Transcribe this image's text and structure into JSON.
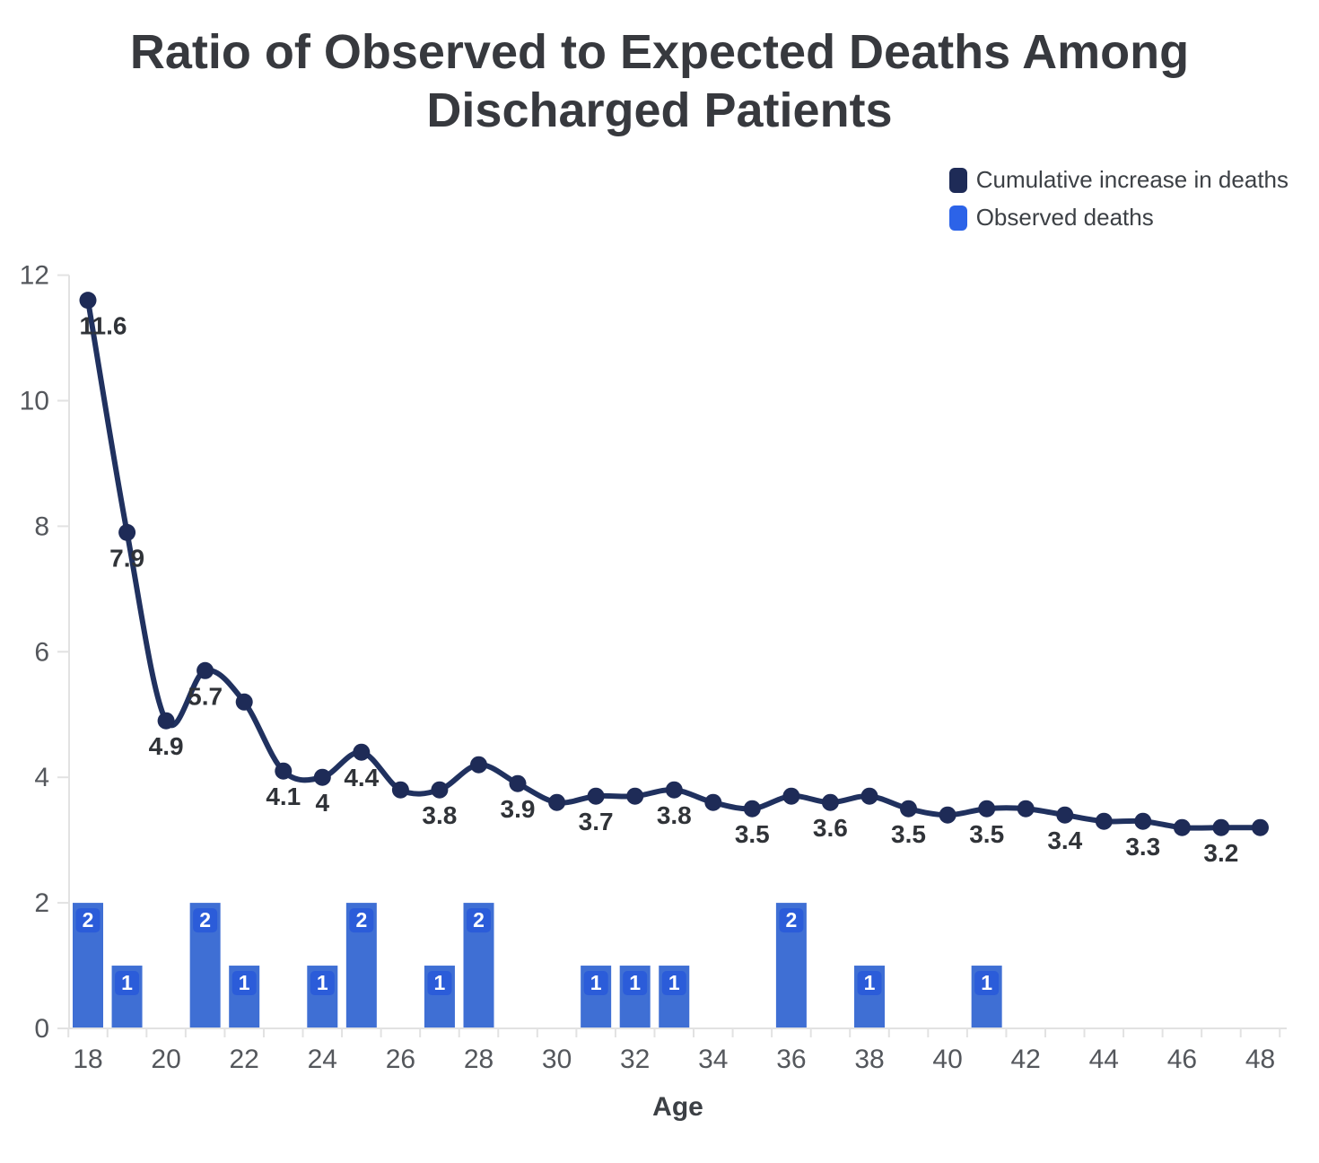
{
  "title": "Ratio of Observed to Expected Deaths Among Discharged Patients",
  "title_lines": [
    "Ratio of Observed to Expected Deaths Among",
    "Discharged Patients"
  ],
  "legend": {
    "position": "top-right",
    "items": [
      {
        "label": "Cumulative increase in deaths",
        "color": "#1e2b57"
      },
      {
        "label": "Observed deaths",
        "color": "#2c63e8"
      }
    ]
  },
  "colors": {
    "line": "#20315f",
    "marker": "#1e2b57",
    "bar": "#3f6fd4",
    "bar_badge": "#2b5cd9",
    "badge_text": "#ffffff",
    "data_label": "#303338",
    "axis_text": "#54575c",
    "axis_title_text": "#3c4045",
    "axis_line": "#e2e2e2",
    "background": "#ffffff"
  },
  "chart_data": {
    "type": "line+bar",
    "title": "Ratio of Observed to Expected Deaths Among Discharged Patients",
    "xlabel": "Age",
    "ylabel": "",
    "xlim": [
      17.5,
      48.5
    ],
    "ylim": [
      0,
      12
    ],
    "grid": false,
    "legend_position": "top-right",
    "y_ticks": [
      0,
      2,
      4,
      6,
      8,
      10,
      12
    ],
    "x_tick_labels": [
      18,
      20,
      22,
      24,
      26,
      28,
      30,
      32,
      34,
      36,
      38,
      40,
      42,
      44,
      46,
      48
    ],
    "series": [
      {
        "name": "Cumulative increase in deaths",
        "type": "line",
        "x": [
          18,
          19,
          20,
          21,
          22,
          23,
          24,
          25,
          26,
          27,
          28,
          29,
          30,
          31,
          32,
          33,
          34,
          35,
          36,
          37,
          38,
          39,
          40,
          41,
          42,
          43,
          44,
          45,
          46,
          47,
          48
        ],
        "values": [
          11.6,
          7.9,
          4.9,
          5.7,
          5.2,
          4.1,
          4.0,
          4.4,
          3.8,
          3.8,
          4.2,
          3.9,
          3.6,
          3.7,
          3.7,
          3.8,
          3.6,
          3.5,
          3.7,
          3.6,
          3.7,
          3.5,
          3.4,
          3.5,
          3.5,
          3.4,
          3.3,
          3.3,
          3.2,
          3.2,
          3.2
        ]
      },
      {
        "name": "Observed deaths",
        "type": "bar",
        "x": [
          18,
          19,
          21,
          22,
          24,
          25,
          27,
          28,
          31,
          32,
          33,
          36,
          38,
          41
        ],
        "values": [
          2,
          1,
          2,
          1,
          1,
          2,
          1,
          2,
          1,
          1,
          1,
          2,
          1,
          1
        ]
      }
    ],
    "point_labels": [
      {
        "x": 18,
        "label": "11.6"
      },
      {
        "x": 19,
        "label": "7.9"
      },
      {
        "x": 20,
        "label": "4.9"
      },
      {
        "x": 21,
        "label": "5.7"
      },
      {
        "x": 23,
        "label": "4.1"
      },
      {
        "x": 24,
        "label": "4"
      },
      {
        "x": 25,
        "label": "4.4"
      },
      {
        "x": 27,
        "label": "3.8"
      },
      {
        "x": 29,
        "label": "3.9"
      },
      {
        "x": 31,
        "label": "3.7"
      },
      {
        "x": 33,
        "label": "3.8"
      },
      {
        "x": 35,
        "label": "3.5"
      },
      {
        "x": 37,
        "label": "3.6"
      },
      {
        "x": 39,
        "label": "3.5"
      },
      {
        "x": 41,
        "label": "3.5"
      },
      {
        "x": 43,
        "label": "3.4"
      },
      {
        "x": 45,
        "label": "3.3"
      },
      {
        "x": 47,
        "label": "3.2"
      }
    ],
    "bar_value_badges": true
  }
}
